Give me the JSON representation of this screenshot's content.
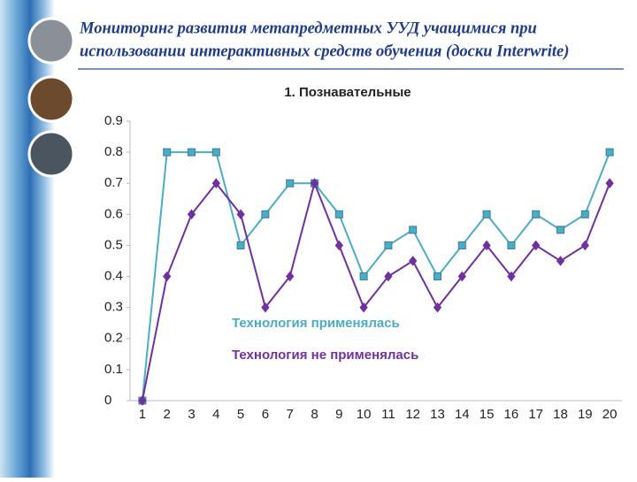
{
  "header": {
    "title_lines": [
      "Мониторинг развития метапредметных УУД учащимися при",
      "использовании интерактивных средств обучения (доски Interwrite)"
    ]
  },
  "chart_data": {
    "type": "line",
    "title": "1. Познавательные",
    "categories": [
      "1",
      "2",
      "3",
      "4",
      "5",
      "6",
      "7",
      "8",
      "9",
      "10",
      "11",
      "12",
      "13",
      "14",
      "15",
      "16",
      "17",
      "18",
      "19",
      "20"
    ],
    "series": [
      {
        "name": "Технология применялась",
        "color": "#4bacc6",
        "marker": "square",
        "values": [
          0,
          0.8,
          0.8,
          0.8,
          0.5,
          0.6,
          0.7,
          0.7,
          0.6,
          0.4,
          0.5,
          0.55,
          0.4,
          0.5,
          0.6,
          0.5,
          0.6,
          0.55,
          0.6,
          0.8
        ]
      },
      {
        "name": "Технология не применялась",
        "color": "#7030a0",
        "marker": "diamond",
        "values": [
          0,
          0.4,
          0.6,
          0.7,
          0.6,
          0.3,
          0.4,
          0.7,
          0.5,
          0.3,
          0.4,
          0.45,
          0.3,
          0.4,
          0.5,
          0.4,
          0.5,
          0.45,
          0.5,
          0.7
        ]
      }
    ],
    "ylim": [
      0,
      0.9
    ],
    "yticks": [
      0,
      0.1,
      0.2,
      0.3,
      0.4,
      0.5,
      0.6,
      0.7,
      0.8,
      0.9
    ],
    "grid": false
  }
}
